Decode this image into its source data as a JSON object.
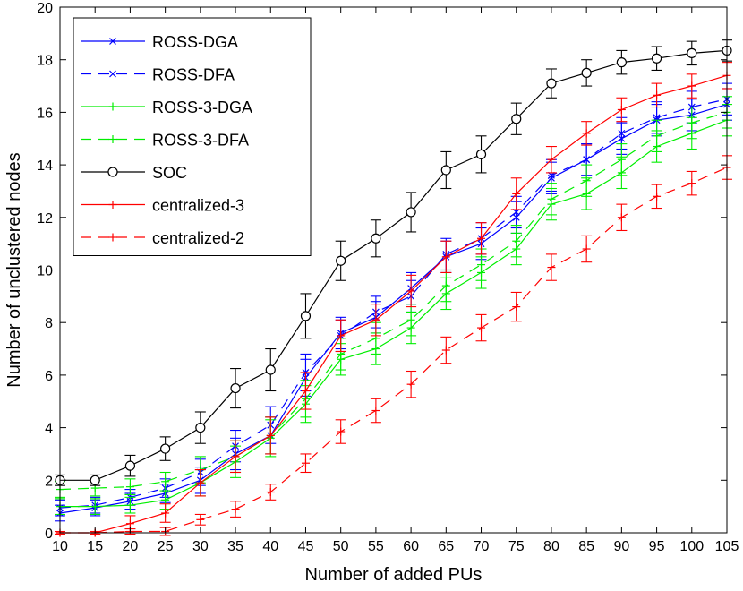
{
  "chart_data": {
    "type": "line",
    "title": "",
    "xlabel": "Number of added PUs",
    "ylabel": "Number of unclustered nodes",
    "xlim": [
      10,
      105
    ],
    "ylim": [
      0,
      20
    ],
    "grid": false,
    "legend_position": "top-left",
    "x": [
      10,
      15,
      20,
      25,
      30,
      35,
      40,
      45,
      50,
      55,
      60,
      65,
      70,
      75,
      80,
      85,
      90,
      95,
      100,
      105
    ],
    "xticks": [
      10,
      15,
      20,
      25,
      30,
      35,
      40,
      45,
      50,
      55,
      60,
      65,
      70,
      75,
      80,
      85,
      90,
      95,
      100,
      105
    ],
    "yticks": [
      0,
      2,
      4,
      6,
      8,
      10,
      12,
      14,
      16,
      18,
      20
    ],
    "series": [
      {
        "name": "ROSS-DGA",
        "color": "#0000ff",
        "dash": "solid",
        "marker": "x",
        "values": [
          0.75,
          0.95,
          1.2,
          1.5,
          2.0,
          3.0,
          3.7,
          5.9,
          7.6,
          8.2,
          9.3,
          10.5,
          11.0,
          12.0,
          13.5,
          14.2,
          15.0,
          15.7,
          15.9,
          16.3
        ],
        "errors": [
          0.3,
          0.3,
          0.3,
          0.35,
          0.5,
          0.6,
          0.7,
          0.7,
          0.6,
          0.6,
          0.6,
          0.6,
          0.6,
          0.6,
          0.6,
          0.6,
          0.6,
          0.6,
          0.6,
          0.6
        ]
      },
      {
        "name": "ROSS-DFA",
        "color": "#0000ff",
        "dash": "dashed",
        "marker": "x",
        "values": [
          0.95,
          1.05,
          1.35,
          1.7,
          2.3,
          3.3,
          4.1,
          6.1,
          7.5,
          8.4,
          9.0,
          10.6,
          11.2,
          12.2,
          13.6,
          14.2,
          15.2,
          15.8,
          16.2,
          16.5
        ],
        "errors": [
          0.3,
          0.3,
          0.3,
          0.35,
          0.5,
          0.6,
          0.7,
          0.7,
          0.6,
          0.6,
          0.6,
          0.6,
          0.6,
          0.6,
          0.6,
          0.6,
          0.6,
          0.6,
          0.6,
          0.6
        ]
      },
      {
        "name": "ROSS-3-DGA",
        "color": "#00ee00",
        "dash": "solid",
        "marker": "+",
        "values": [
          1.0,
          1.0,
          1.05,
          1.25,
          1.9,
          2.7,
          3.6,
          4.9,
          6.6,
          7.0,
          7.8,
          9.1,
          9.9,
          10.8,
          12.5,
          12.9,
          13.7,
          14.7,
          15.2,
          15.7
        ],
        "errors": [
          0.3,
          0.3,
          0.3,
          0.35,
          0.5,
          0.6,
          0.7,
          0.7,
          0.6,
          0.6,
          0.6,
          0.6,
          0.6,
          0.6,
          0.6,
          0.6,
          0.6,
          0.6,
          0.6,
          0.6
        ]
      },
      {
        "name": "ROSS-3-DFA",
        "color": "#00ee00",
        "dash": "dashed",
        "marker": "+",
        "values": [
          1.65,
          1.7,
          1.75,
          1.95,
          2.4,
          2.9,
          3.7,
          5.1,
          6.8,
          7.4,
          8.1,
          9.4,
          10.2,
          11.1,
          12.7,
          13.4,
          14.2,
          15.1,
          15.6,
          16.0
        ],
        "errors": [
          0.3,
          0.3,
          0.3,
          0.35,
          0.5,
          0.6,
          0.7,
          0.7,
          0.6,
          0.6,
          0.6,
          0.6,
          0.6,
          0.6,
          0.6,
          0.6,
          0.6,
          0.6,
          0.6,
          0.6
        ]
      },
      {
        "name": "SOC",
        "color": "#000000",
        "dash": "solid",
        "marker": "o",
        "values": [
          2.0,
          2.0,
          2.55,
          3.2,
          4.0,
          5.5,
          6.2,
          8.25,
          10.35,
          11.2,
          12.2,
          13.8,
          14.4,
          15.75,
          17.1,
          17.5,
          17.9,
          18.05,
          18.25,
          18.35
        ],
        "errors": [
          0.2,
          0.2,
          0.4,
          0.45,
          0.6,
          0.75,
          0.8,
          0.85,
          0.75,
          0.7,
          0.75,
          0.7,
          0.7,
          0.6,
          0.55,
          0.5,
          0.45,
          0.45,
          0.45,
          0.4
        ]
      },
      {
        "name": "centralized-3",
        "color": "#ff0000",
        "dash": "solid",
        "marker": "+",
        "values": [
          0.0,
          0.0,
          0.35,
          0.75,
          1.9,
          2.9,
          3.7,
          5.4,
          7.5,
          8.1,
          9.2,
          10.5,
          11.2,
          12.9,
          14.2,
          15.2,
          16.1,
          16.65,
          17.0,
          17.4
        ],
        "errors": [
          0.05,
          0.05,
          0.3,
          0.35,
          0.5,
          0.6,
          0.7,
          0.7,
          0.6,
          0.6,
          0.6,
          0.6,
          0.6,
          0.6,
          0.5,
          0.45,
          0.45,
          0.45,
          0.45,
          0.5
        ]
      },
      {
        "name": "centralized-2",
        "color": "#ff0000",
        "dash": "dashed",
        "marker": "+",
        "values": [
          0.0,
          0.0,
          0.05,
          0.05,
          0.5,
          0.9,
          1.55,
          2.65,
          3.85,
          4.65,
          5.65,
          6.95,
          7.8,
          8.6,
          10.1,
          10.8,
          12.0,
          12.8,
          13.3,
          13.9
        ],
        "errors": [
          0.05,
          0.05,
          0.1,
          0.15,
          0.2,
          0.3,
          0.3,
          0.35,
          0.45,
          0.45,
          0.5,
          0.5,
          0.5,
          0.55,
          0.5,
          0.5,
          0.5,
          0.45,
          0.45,
          0.45
        ]
      }
    ]
  }
}
